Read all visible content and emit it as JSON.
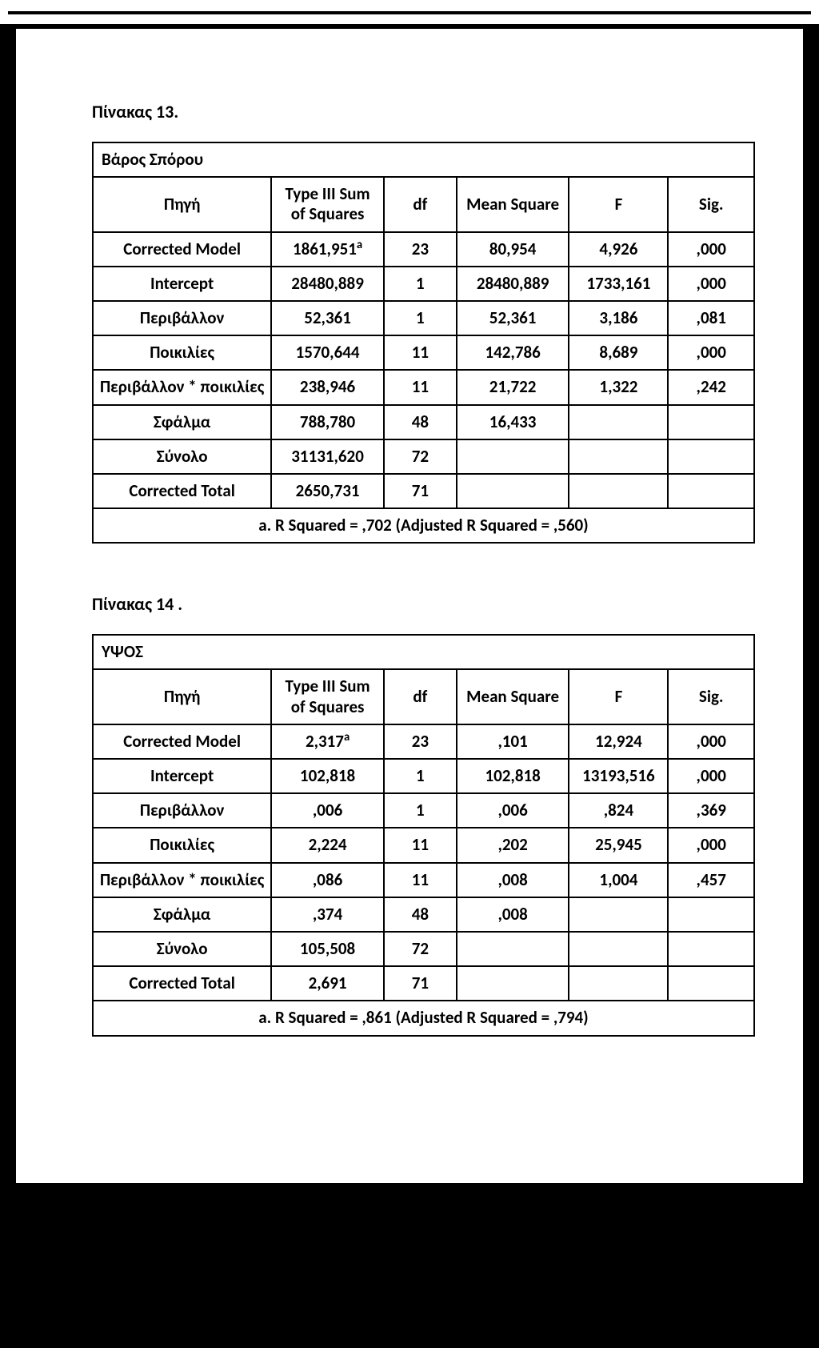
{
  "table1": {
    "caption": "Πίνακας 13.",
    "header_title": "Βάρος Σπόρου",
    "columns": {
      "source": "Πηγή",
      "ss": "Type III Sum of Squares",
      "df": "df",
      "ms": "Mean Square",
      "f": "F",
      "sig": "Sig."
    },
    "rows": [
      {
        "src": "Corrected Model",
        "ss": "1861,951",
        "ss_sup": "a",
        "df": "23",
        "ms": "80,954",
        "f": "4,926",
        "sig": ",000"
      },
      {
        "src": "Intercept",
        "ss": "28480,889",
        "df": "1",
        "ms": "28480,889",
        "f": "1733,161",
        "sig": ",000"
      },
      {
        "src": "Περιβάλλον",
        "ss": "52,361",
        "df": "1",
        "ms": "52,361",
        "f": "3,186",
        "sig": ",081"
      },
      {
        "src": "Ποικιλίες",
        "ss": "1570,644",
        "df": "11",
        "ms": "142,786",
        "f": "8,689",
        "sig": ",000"
      },
      {
        "src": "Περιβάλλον * ποικιλίες",
        "ss": "238,946",
        "df": "11",
        "ms": "21,722",
        "f": "1,322",
        "sig": ",242"
      },
      {
        "src": "Σφάλμα",
        "ss": "788,780",
        "df": "48",
        "ms": "16,433",
        "f": "",
        "sig": ""
      },
      {
        "src": "Σύνολο",
        "ss": "31131,620",
        "df": "72",
        "ms": "",
        "f": "",
        "sig": ""
      },
      {
        "src": "Corrected Total",
        "ss": "2650,731",
        "df": "71",
        "ms": "",
        "f": "",
        "sig": ""
      }
    ],
    "footnote": "a. R Squared = ,702 (Adjusted R Squared = ,560)"
  },
  "table2": {
    "caption": "Πίνακας 14 .",
    "header_title": "ΥΨΟΣ",
    "columns": {
      "source": "Πηγή",
      "ss": "Type III Sum of Squares",
      "df": "df",
      "ms": "Mean Square",
      "f": "F",
      "sig": "Sig."
    },
    "rows": [
      {
        "src": "Corrected Model",
        "ss": "2,317",
        "ss_sup": "a",
        "df": "23",
        "ms": ",101",
        "f": "12,924",
        "sig": ",000"
      },
      {
        "src": "Intercept",
        "ss": "102,818",
        "df": "1",
        "ms": "102,818",
        "f": "13193,516",
        "sig": ",000"
      },
      {
        "src": "Περιβάλλον",
        "ss": ",006",
        "df": "1",
        "ms": ",006",
        "f": ",824",
        "sig": ",369"
      },
      {
        "src": "Ποικιλίες",
        "ss": "2,224",
        "df": "11",
        "ms": ",202",
        "f": "25,945",
        "sig": ",000"
      },
      {
        "src": "Περιβάλλον * ποικιλίες",
        "ss": ",086",
        "df": "11",
        "ms": ",008",
        "f": "1,004",
        "sig": ",457"
      },
      {
        "src": "Σφάλμα",
        "ss": ",374",
        "df": "48",
        "ms": ",008",
        "f": "",
        "sig": ""
      },
      {
        "src": "Σύνολο",
        "ss": "105,508",
        "df": "72",
        "ms": "",
        "f": "",
        "sig": ""
      },
      {
        "src": "Corrected Total",
        "ss": "2,691",
        "df": "71",
        "ms": "",
        "f": "",
        "sig": ""
      }
    ],
    "footnote": "a. R Squared = ,861 (Adjusted R Squared = ,794)"
  }
}
